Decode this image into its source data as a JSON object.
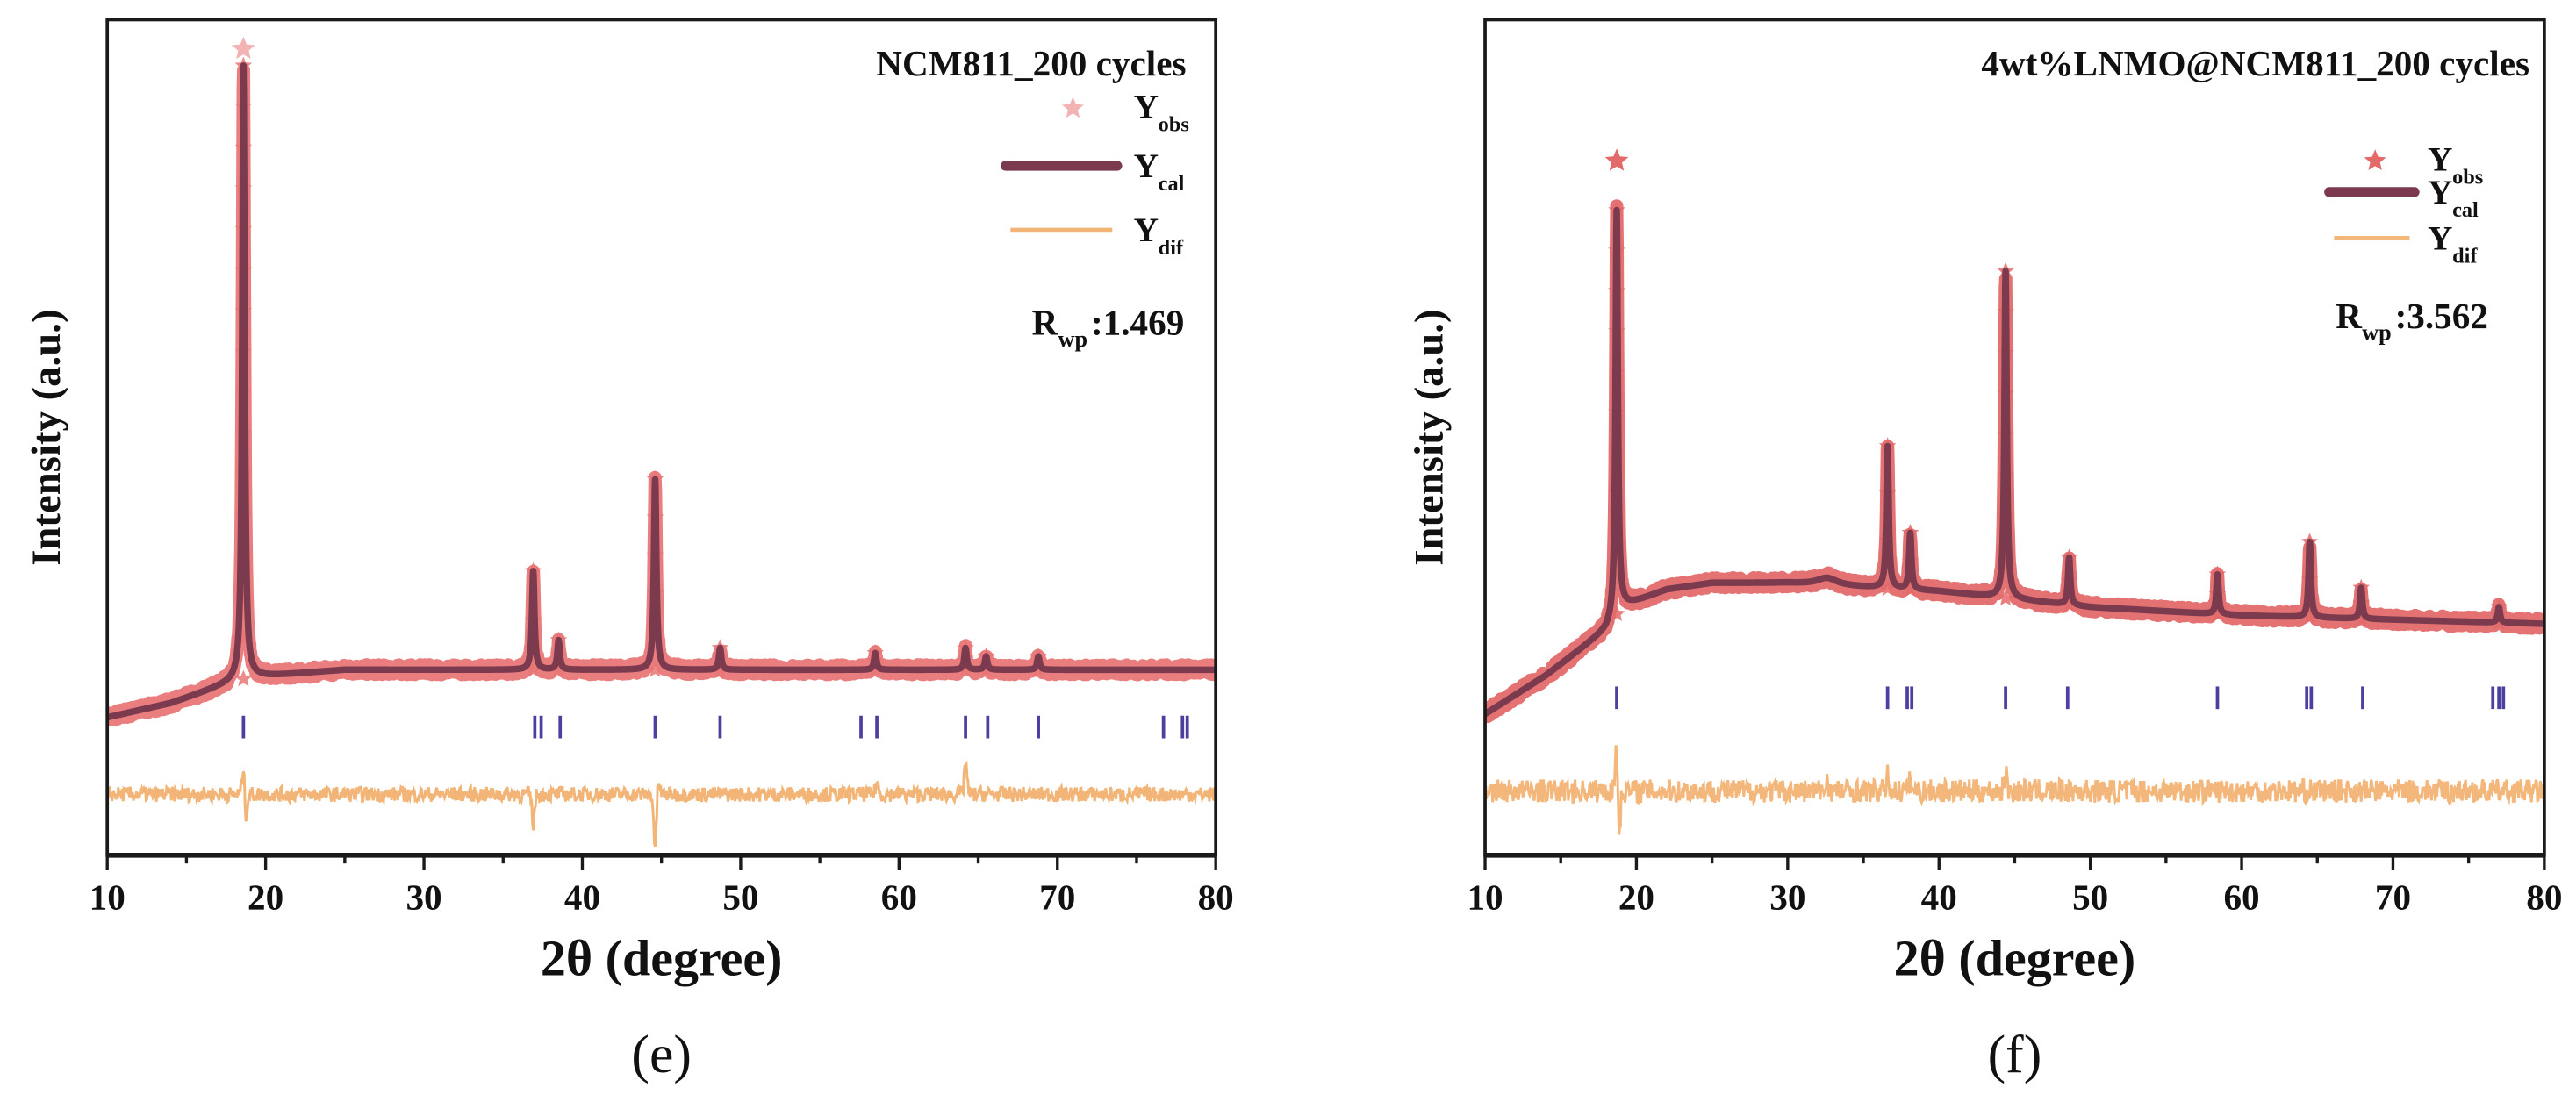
{
  "chart_data": [
    {
      "type": "line",
      "panel_label": "(e)",
      "title": "NCM811_200 cycles",
      "xlabel": "2θ (degree)",
      "ylabel": "Intensity (a.u.)",
      "xlim": [
        10,
        80
      ],
      "ylim": [
        0,
        100
      ],
      "xticks": [
        "10",
        "20",
        "30",
        "40",
        "50",
        "60",
        "70",
        "80"
      ],
      "grid": false,
      "legend_position": "top-right",
      "legend": [
        {
          "main": "Y",
          "sub": "obs",
          "kind": "star"
        },
        {
          "main": "Y",
          "sub": "cal",
          "kind": "thick-line"
        },
        {
          "main": "Y",
          "sub": "dif",
          "kind": "thin-line"
        }
      ],
      "rwp": {
        "main": "R",
        "sub": "wp",
        "value": ":1.469"
      },
      "colors": {
        "obs": "#e97676",
        "obs_legend": "#f3b3b3",
        "cal": "#7b3a4e",
        "dif": "#f2b577",
        "reflections": "#4b3fa0"
      },
      "background": [
        [
          10,
          16.5
        ],
        [
          14,
          18.2
        ],
        [
          18,
          20.8
        ],
        [
          19,
          21.3
        ],
        [
          25,
          22.2
        ],
        [
          80,
          22.2
        ]
      ],
      "peaks": [
        {
          "x": 18.6,
          "y": 94.5,
          "obs_top": 96.5
        },
        {
          "x": 36.9,
          "y": 34.0
        },
        {
          "x": 38.5,
          "y": 25.7
        },
        {
          "x": 44.6,
          "y": 45.0
        },
        {
          "x": 48.7,
          "y": 24.8
        },
        {
          "x": 58.5,
          "y": 24.2
        },
        {
          "x": 64.2,
          "y": 24.8
        },
        {
          "x": 65.5,
          "y": 23.8
        },
        {
          "x": 68.8,
          "y": 23.8
        }
      ],
      "reflections": [
        18.6,
        37.0,
        37.4,
        38.6,
        44.6,
        48.7,
        57.6,
        58.6,
        64.2,
        65.6,
        68.8,
        76.7,
        77.9,
        78.2
      ],
      "reflection_band": [
        14.0,
        16.7
      ],
      "difference": {
        "offset": 7.3,
        "noise": 0.9,
        "features": [
          {
            "x": 18.6,
            "dy": 3.5
          },
          {
            "x": 18.75,
            "dy": -3.0
          },
          {
            "x": 36.9,
            "dy": -3.5
          },
          {
            "x": 44.6,
            "dy": -6.5
          },
          {
            "x": 44.8,
            "dy": 1.8
          },
          {
            "x": 58.6,
            "dy": 1.5
          },
          {
            "x": 64.2,
            "dy": 4.0
          }
        ]
      }
    },
    {
      "type": "line",
      "panel_label": "(f)",
      "title": "4wt%LNMO@NCM811_200 cycles",
      "xlabel": "2θ (degree)",
      "ylabel": "Intensity (a.u.)",
      "xlim": [
        10,
        80
      ],
      "ylim": [
        0,
        100
      ],
      "xticks": [
        "10",
        "20",
        "30",
        "40",
        "50",
        "60",
        "70",
        "80"
      ],
      "grid": false,
      "legend_position": "top-right",
      "legend": [
        {
          "main": "Y",
          "sub": "obs",
          "kind": "star"
        },
        {
          "main": "Y",
          "sub": "cal",
          "kind": "thick-line"
        },
        {
          "main": "Y",
          "sub": "dif",
          "kind": "thin-line"
        }
      ],
      "rwp": {
        "main": "R",
        "sub": "wp",
        "value": ":3.562"
      },
      "colors": {
        "obs": "#e46a6a",
        "obs_legend": "#e46a6a",
        "cal": "#7b3a4e",
        "dif": "#f4b77b",
        "reflections": "#4b3fa0"
      },
      "background": [
        [
          10,
          16.9
        ],
        [
          14,
          21.5
        ],
        [
          18,
          27.0
        ],
        [
          19,
          29.7
        ],
        [
          22,
          31.8
        ],
        [
          25,
          32.6
        ],
        [
          30,
          32.6
        ],
        [
          40,
          31.6
        ],
        [
          50,
          29.7
        ],
        [
          60,
          28.7
        ],
        [
          80,
          27.7
        ]
      ],
      "peaks": [
        {
          "x": 18.7,
          "y": 77.2,
          "obs_top": 83.1
        },
        {
          "x": 32.6,
          "y": 33.2,
          "broad": true
        },
        {
          "x": 36.6,
          "y": 48.9
        },
        {
          "x": 38.1,
          "y": 38.5
        },
        {
          "x": 44.4,
          "y": 69.9
        },
        {
          "x": 48.6,
          "y": 35.6
        },
        {
          "x": 58.4,
          "y": 33.6
        },
        {
          "x": 64.5,
          "y": 37.5
        },
        {
          "x": 67.9,
          "y": 32.0
        },
        {
          "x": 77.0,
          "y": 29.7
        }
      ],
      "reflections": [
        18.7,
        36.6,
        37.9,
        38.2,
        44.4,
        48.5,
        58.4,
        64.3,
        64.6,
        68.0,
        76.6,
        77.0,
        77.3
      ],
      "reflection_band": [
        17.5,
        20.2
      ],
      "difference": {
        "offset": 7.7,
        "noise": 1.4,
        "features": [
          {
            "x": 18.7,
            "dy": 6.5
          },
          {
            "x": 18.85,
            "dy": -6.0
          },
          {
            "x": 32.6,
            "dy": 1.5
          },
          {
            "x": 36.6,
            "dy": 1.8
          },
          {
            "x": 38.1,
            "dy": 1.2
          },
          {
            "x": 44.4,
            "dy": 2.4
          }
        ]
      }
    }
  ]
}
